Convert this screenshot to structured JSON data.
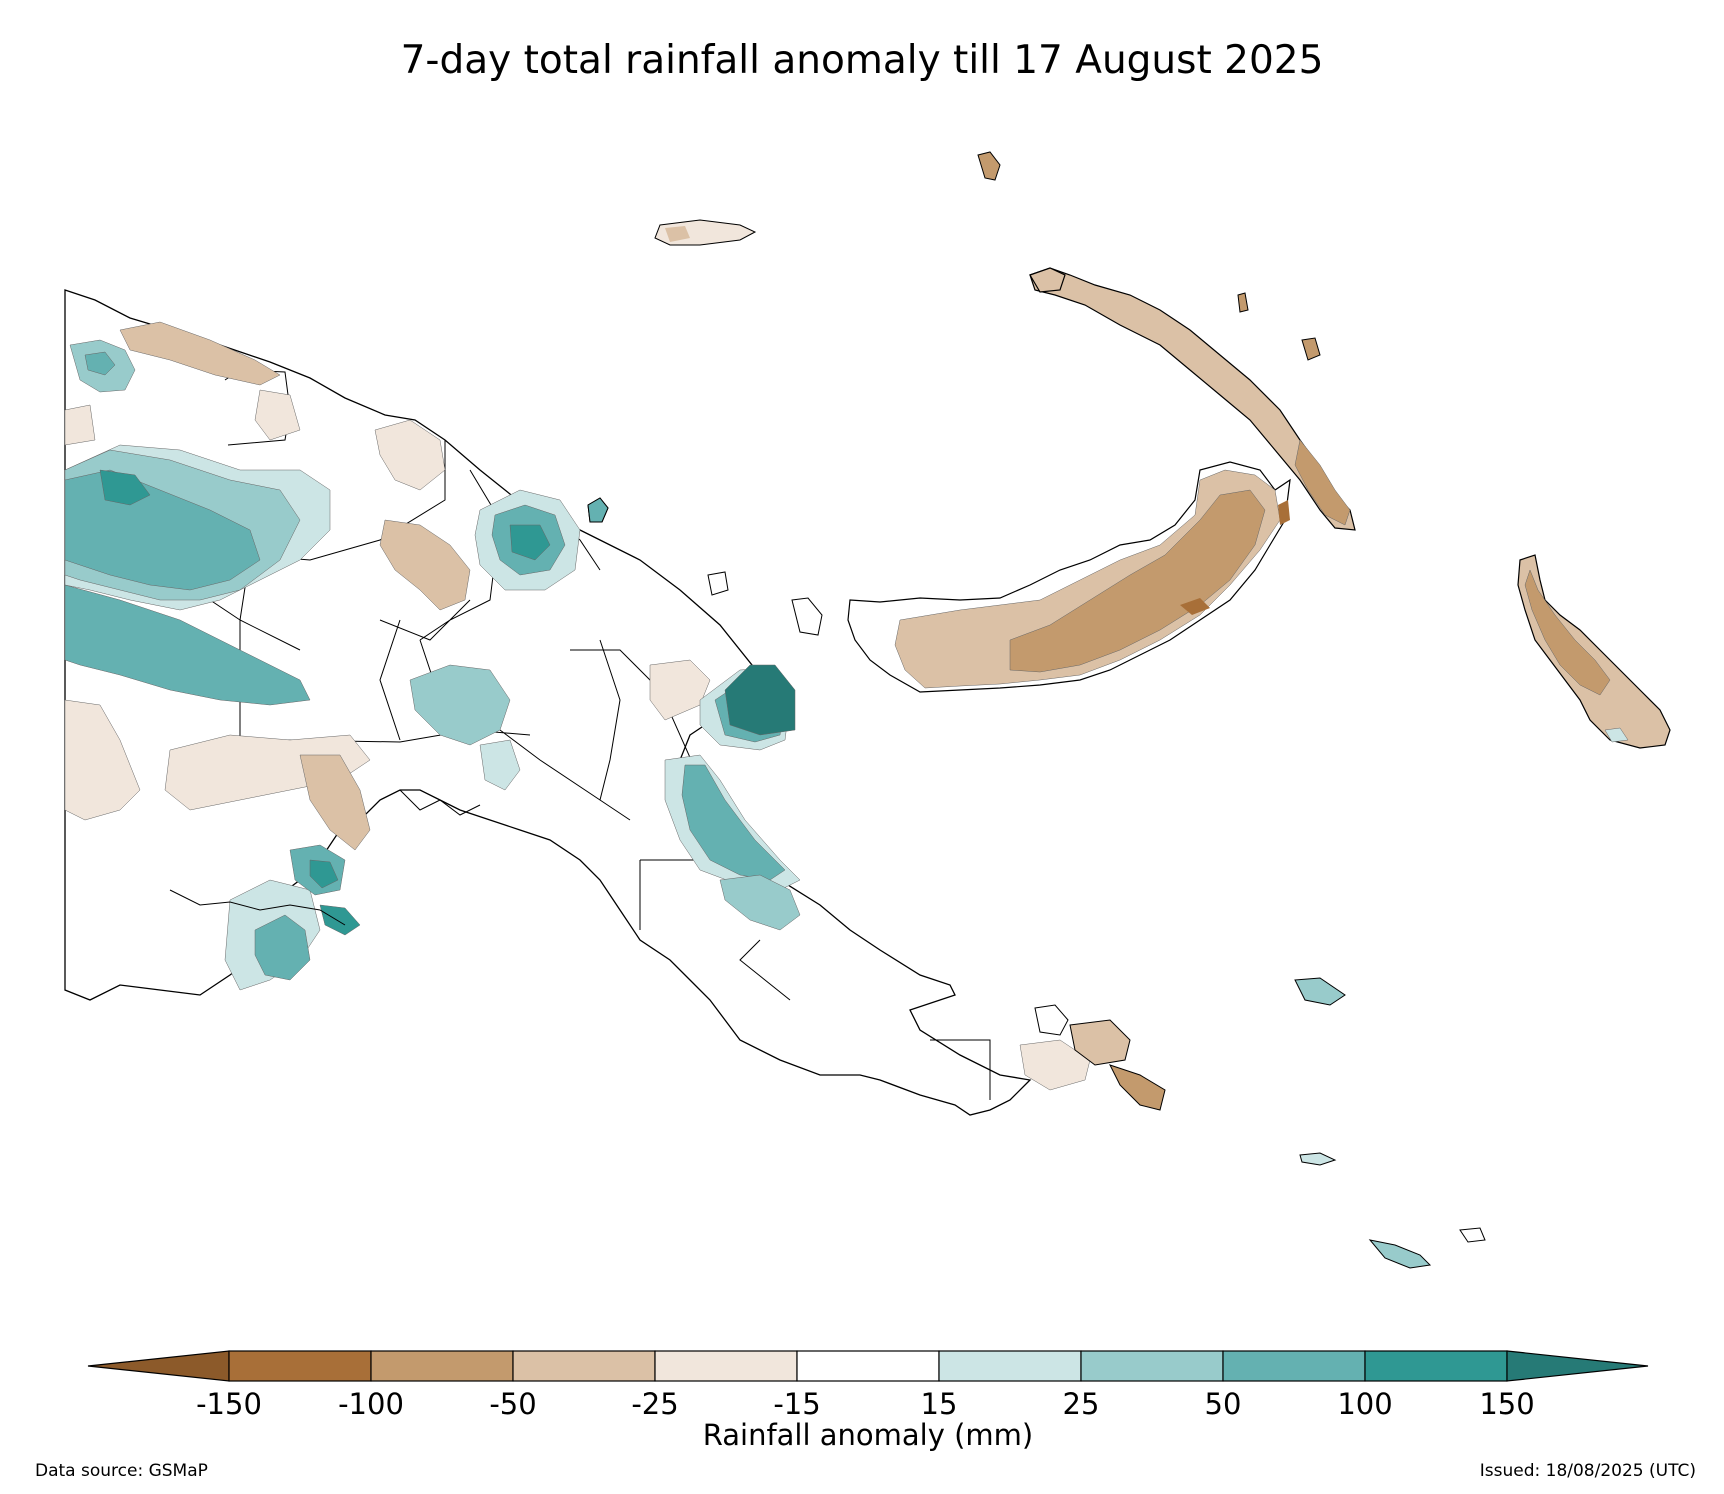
{
  "title": "7-day total rainfall anomaly till 17 August 2025",
  "colorbar": {
    "label": "Rainfall anomaly (mm)",
    "ticks": [
      "-150",
      "-100",
      "-50",
      "-25",
      "-15",
      "15",
      "25",
      "50",
      "100",
      "150"
    ],
    "colors": {
      "under": "#8c5a2a",
      "bins": [
        "#a86f38",
        "#c39a6d",
        "#dbc1a6",
        "#f1e6dc",
        "#ffffff",
        "#cce5e5",
        "#98cbcb",
        "#64b1b1",
        "#2f9893"
      ],
      "over": "#267a76"
    }
  },
  "footer": {
    "source": "Data source: GSMaP",
    "issued": "Issued: 18/08/2025 (UTC)"
  },
  "map": {
    "region": "Papua New Guinea",
    "features": [
      {
        "name": "west-lowlands-wet",
        "class": "50 to 100"
      },
      {
        "name": "north-coast-dry",
        "class": "-50 to -25"
      },
      {
        "name": "madang-wet",
        "class": "50 to 100"
      },
      {
        "name": "huon-wet",
        "class": "over 150"
      },
      {
        "name": "morobe-coast-wet",
        "class": "50 to 100"
      },
      {
        "name": "new-britain-dry",
        "class": "-100 to -50"
      },
      {
        "name": "new-ireland-dry",
        "class": "-100 to -50"
      },
      {
        "name": "bougainville-dry",
        "class": "-100 to -50"
      },
      {
        "name": "fly-delta-wet",
        "class": "100 to 150"
      },
      {
        "name": "southwest-dry",
        "class": "-25 to -15"
      }
    ]
  }
}
